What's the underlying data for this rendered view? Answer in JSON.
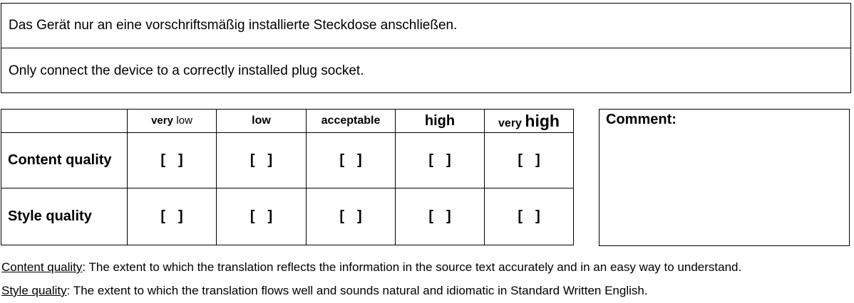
{
  "sentences": {
    "source": "Das Gerät nur an eine vorschriftsmäßig installierte Steckdose anschließen.",
    "translation": "Only connect the device to a correctly installed plug socket."
  },
  "rating_table": {
    "columns": [
      {
        "prefix": "very",
        "main": "low"
      },
      {
        "prefix": "",
        "main": "low"
      },
      {
        "prefix": "",
        "main": "acceptable"
      },
      {
        "prefix": "",
        "main": "high"
      },
      {
        "prefix": "very",
        "main": "high"
      }
    ],
    "rows": [
      {
        "label": "Content quality",
        "options": [
          "[ ]",
          "[ ]",
          "[ ]",
          "[ ]",
          "[ ]"
        ]
      },
      {
        "label": "Style quality",
        "options": [
          "[ ]",
          "[ ]",
          "[ ]",
          "[ ]",
          "[ ]"
        ]
      }
    ]
  },
  "comment": {
    "label": "Comment:"
  },
  "definitions": [
    {
      "term": "Content quality",
      "text": ": The extent to which the translation reflects the information in the source text accurately and in an easy way to understand."
    },
    {
      "term": "Style quality",
      "text": ": The extent to which the translation flows well and sounds natural and idiomatic in Standard Written English."
    }
  ]
}
